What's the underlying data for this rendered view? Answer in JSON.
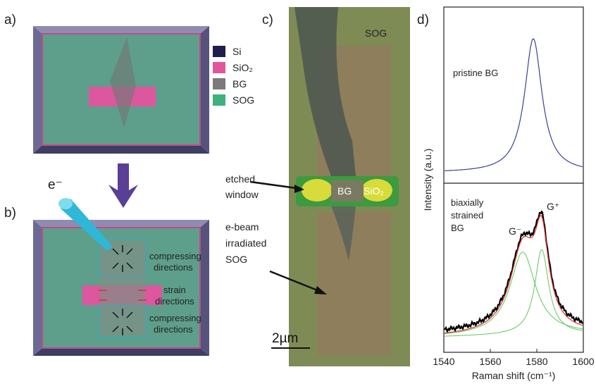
{
  "panels": {
    "a": {
      "label": "a)"
    },
    "b": {
      "label": "b)",
      "beam": "e⁻",
      "compress_top": [
        "compressing",
        "directions"
      ],
      "strain": [
        "strain",
        "directions"
      ],
      "compress_bottom": [
        "compressing",
        "directions"
      ]
    },
    "c": {
      "label": "c)",
      "sog": "SOG",
      "window": [
        "etched",
        "window"
      ],
      "bg": "BG",
      "sio2": "SiO₂",
      "irradiated": [
        "e-beam",
        "irradiated",
        "SOG"
      ],
      "scale": "2µm"
    },
    "d": {
      "label": "d)",
      "pristine": "pristine BG",
      "strained": [
        "biaxially",
        "strained",
        "BG"
      ],
      "g_minus": "G⁻",
      "g_plus": "G⁺",
      "y_label": "Intensity (a.u.)",
      "x_label": "Raman shift (cm⁻¹)",
      "xlim": [
        1540,
        1600
      ],
      "xticks": [
        1540,
        1560,
        1580,
        1600
      ]
    }
  },
  "legend": [
    {
      "label": "Si",
      "color": "#1e1f4c"
    },
    {
      "label": "SiO₂",
      "color": "#e0559c"
    },
    {
      "label": "BG",
      "color": "#7b7b7b"
    },
    {
      "label": "SOG",
      "color": "#3fb07e"
    }
  ]
}
